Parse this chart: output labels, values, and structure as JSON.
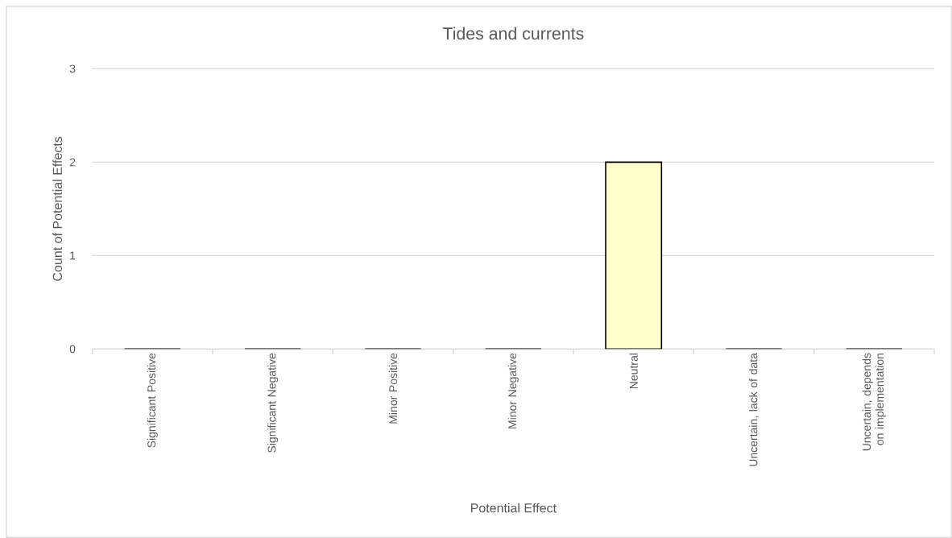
{
  "chart_data": {
    "type": "bar",
    "title": "Tides and currents",
    "xlabel": "Potential Effect",
    "ylabel": "Count of Potential Effects",
    "categories": [
      "Significant Positive",
      "Significant Negative",
      "Minor Positive",
      "Minor Negative",
      "Neutral",
      "Uncertain, lack of data",
      "Uncertain, depends on implementation"
    ],
    "values": [
      0,
      0,
      0,
      0,
      2,
      0,
      0
    ],
    "color": "#ffffcc",
    "ylim": [
      0,
      3
    ],
    "yticks": [
      0,
      1,
      2,
      3
    ],
    "grid": "y"
  }
}
